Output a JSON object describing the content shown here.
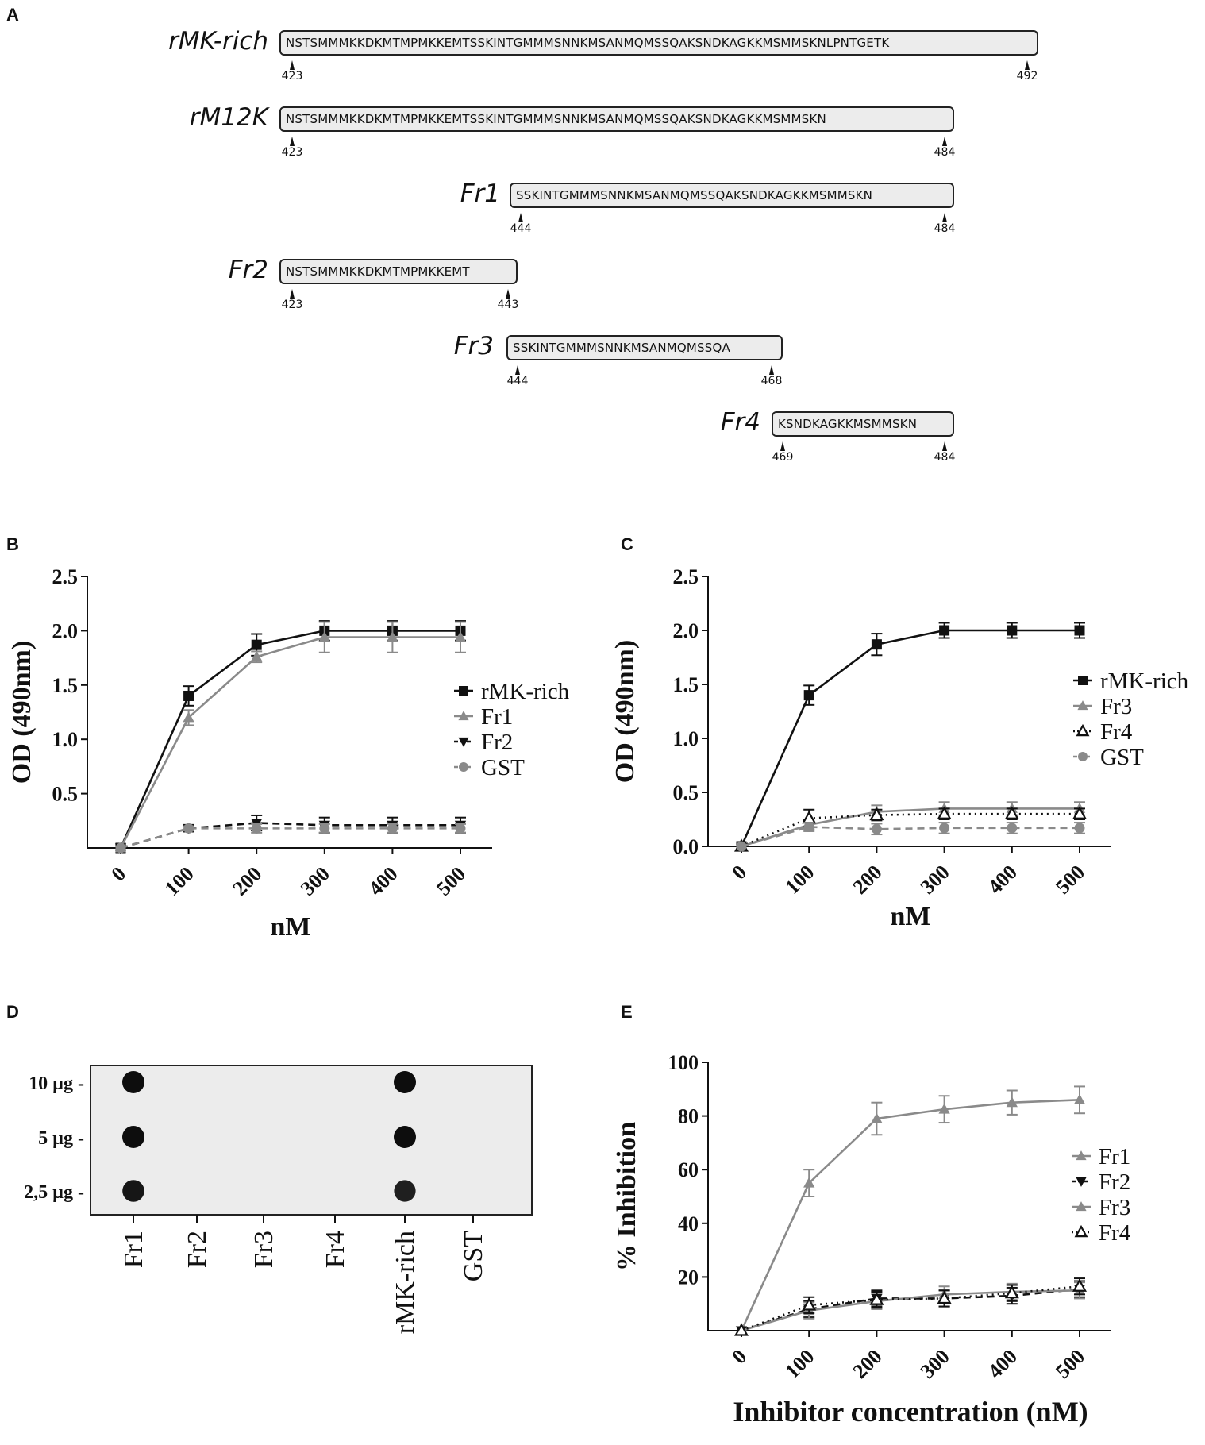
{
  "panels": {
    "A": "A",
    "B": "B",
    "C": "C",
    "D": "D",
    "E": "E"
  },
  "sequences": [
    {
      "name": "rMK-rich",
      "seq": "NSTSMMMKKDKMTMPMKKEMTSSKINTGMMMSNNKMSANMQMSSQAKSNDKAGKKMSMMSKNLPNTGETK",
      "start": "423",
      "end": "492"
    },
    {
      "name": "rM12K",
      "seq": "NSTSMMMKKDKMTMPMKKEMTSSKINTGMMMSNNKMSANMQMSSQAKSNDKAGKKMSMMSKN",
      "start": "423",
      "end": "484"
    },
    {
      "name": "Fr1",
      "seq": "SSKINTGMMMSNNKMSANMQMSSQAKSNDKAGKKMSMMSKN",
      "start": "444",
      "end": "484"
    },
    {
      "name": "Fr2",
      "seq": "NSTSMMMKKDKMTMPMKKEMT",
      "start": "423",
      "end": "443"
    },
    {
      "name": "Fr3",
      "seq": "SSKINTGMMMSNNKMSANMQMSSQA",
      "start": "444",
      "end": "468"
    },
    {
      "name": "Fr4",
      "seq": "KSNDKAGKKMSMMSKN",
      "start": "469",
      "end": "484"
    }
  ],
  "chart_data": [
    {
      "panel": "B",
      "type": "line",
      "xlabel": "nM",
      "ylabel": "OD (490nm)",
      "x": [
        0,
        100,
        200,
        300,
        400,
        500
      ],
      "x_tick_labels": [
        "0",
        "100",
        "200",
        "300",
        "400",
        "500"
      ],
      "y_tick_labels": [
        "0.5",
        "1.0",
        "1.5",
        "2.0",
        "2.5"
      ],
      "ylim": [
        0,
        2.5
      ],
      "legend_position": "right",
      "series": [
        {
          "name": "rMK-rich",
          "color": "#111111",
          "marker": "square",
          "dash": "solid",
          "values": [
            0,
            1.4,
            1.87,
            2.0,
            2.0,
            2.0
          ],
          "errors": [
            0,
            0.09,
            0.1,
            0.09,
            0.09,
            0.09
          ]
        },
        {
          "name": "Fr1",
          "color": "#8a8a8a",
          "marker": "triangle-up",
          "dash": "solid",
          "values": [
            0,
            1.2,
            1.76,
            1.94,
            1.94,
            1.94
          ],
          "errors": [
            0,
            0.07,
            0.05,
            0.14,
            0.14,
            0.14
          ]
        },
        {
          "name": "Fr2",
          "color": "#111111",
          "marker": "triangle-down",
          "dash": "dashed",
          "values": [
            0,
            0.18,
            0.23,
            0.21,
            0.21,
            0.21
          ],
          "errors": [
            0,
            0.03,
            0.07,
            0.07,
            0.07,
            0.07
          ]
        },
        {
          "name": "GST",
          "color": "#8a8a8a",
          "marker": "circle",
          "dash": "dashed",
          "values": [
            0,
            0.18,
            0.18,
            0.18,
            0.18,
            0.18
          ],
          "errors": [
            0,
            0.02,
            0.04,
            0.04,
            0.04,
            0.04
          ]
        }
      ]
    },
    {
      "panel": "C",
      "type": "line",
      "xlabel": "nM",
      "ylabel": "OD (490nm)",
      "x": [
        0,
        100,
        200,
        300,
        400,
        500
      ],
      "x_tick_labels": [
        "0",
        "100",
        "200",
        "300",
        "400",
        "500"
      ],
      "y_tick_labels": [
        "0.0",
        "0.5",
        "1.0",
        "1.5",
        "2.0",
        "2.5"
      ],
      "ylim": [
        0,
        2.5
      ],
      "legend_position": "right",
      "series": [
        {
          "name": "rMK-rich",
          "color": "#111111",
          "marker": "square",
          "dash": "solid",
          "values": [
            0,
            1.4,
            1.87,
            2.0,
            2.0,
            2.0
          ],
          "errors": [
            0,
            0.09,
            0.1,
            0.07,
            0.07,
            0.07
          ]
        },
        {
          "name": "Fr3",
          "color": "#8a8a8a",
          "marker": "triangle-up",
          "dash": "solid",
          "values": [
            0,
            0.2,
            0.32,
            0.35,
            0.35,
            0.35
          ],
          "errors": [
            0,
            0.04,
            0.06,
            0.06,
            0.06,
            0.06
          ]
        },
        {
          "name": "Fr4",
          "color": "#111111",
          "marker": "triangle-open",
          "dash": "dotted",
          "values": [
            0,
            0.26,
            0.29,
            0.3,
            0.3,
            0.3
          ],
          "errors": [
            0,
            0.08,
            0.05,
            0.05,
            0.05,
            0.05
          ]
        },
        {
          "name": "GST",
          "color": "#8a8a8a",
          "marker": "circle",
          "dash": "dashed",
          "values": [
            0,
            0.18,
            0.16,
            0.17,
            0.17,
            0.17
          ],
          "errors": [
            0,
            0.04,
            0.05,
            0.05,
            0.05,
            0.05
          ]
        }
      ]
    },
    {
      "panel": "E",
      "type": "line",
      "xlabel": "Inhibitor concentration (nM)",
      "ylabel": "% Inhibition",
      "x": [
        0,
        100,
        200,
        300,
        400,
        500
      ],
      "x_tick_labels": [
        "0",
        "100",
        "200",
        "300",
        "400",
        "500"
      ],
      "y_tick_labels": [
        "20",
        "40",
        "60",
        "80",
        "100"
      ],
      "ylim": [
        0,
        100
      ],
      "legend_position": "right",
      "series": [
        {
          "name": "Fr1",
          "color": "#8a8a8a",
          "marker": "triangle-up",
          "dash": "solid",
          "values": [
            0,
            55,
            79,
            82.5,
            85,
            86
          ],
          "errors": [
            0,
            5,
            6,
            5,
            4.5,
            5
          ]
        },
        {
          "name": "Fr2",
          "color": "#111111",
          "marker": "triangle-down",
          "dash": "dashed",
          "values": [
            0,
            8,
            12,
            12,
            13,
            15.5
          ],
          "errors": [
            0,
            3,
            3,
            3,
            3,
            3
          ]
        },
        {
          "name": "Fr3",
          "color": "#8a8a8a",
          "marker": "triangle-up",
          "dash": "solid",
          "values": [
            0,
            7.5,
            11,
            13.5,
            14.5,
            15
          ],
          "errors": [
            0,
            3,
            3,
            3,
            3,
            3
          ]
        },
        {
          "name": "Fr4",
          "color": "#111111",
          "marker": "triangle-open",
          "dash": "dotted",
          "values": [
            0,
            9.5,
            11.5,
            12,
            14,
            16.5
          ],
          "errors": [
            0,
            3,
            3,
            3,
            3,
            3
          ]
        }
      ]
    },
    {
      "panel": "D",
      "type": "dot-blot",
      "lanes": [
        "Fr1",
        "Fr2",
        "Fr3",
        "Fr4",
        "rMK-rich",
        "GST"
      ],
      "rows": [
        "10 µg -",
        "5 µg -",
        "2,5 µg -"
      ],
      "signal": [
        [
          1,
          0,
          0,
          0,
          1,
          0
        ],
        [
          1,
          0,
          0,
          0,
          1,
          0
        ],
        [
          0.9,
          0,
          0,
          0,
          0.8,
          0
        ]
      ]
    }
  ]
}
